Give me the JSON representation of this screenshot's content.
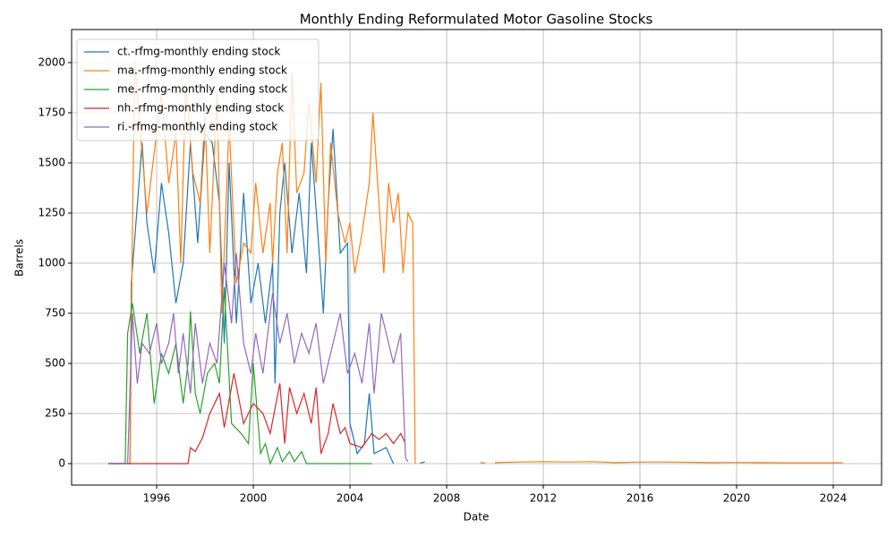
{
  "chart_data": {
    "type": "line",
    "title": "Monthly Ending Reformulated Motor Gasoline Stocks",
    "x_label": "Date",
    "y_label": "Barrels",
    "xlim": [
      1992.48,
      2026.0
    ],
    "xticks": [
      1996,
      2000,
      2004,
      2008,
      2012,
      2016,
      2020,
      2024
    ],
    "ylim": [
      -107,
      2165
    ],
    "yticks": [
      0,
      250,
      500,
      750,
      1000,
      1250,
      1500,
      1750,
      2000
    ],
    "grid": true,
    "legend": "upper left",
    "series": [
      {
        "name": "ct.-rfmg-monthly ending stock",
        "color": "#1f77b4",
        "x": [
          1994.0,
          1994.9,
          1994.95,
          1995.4,
          1995.6,
          1995.9,
          1996.2,
          1996.5,
          1996.8,
          1997.1,
          1997.4,
          1997.7,
          1998.0,
          1998.3,
          1998.6,
          1998.8,
          1999.0,
          1999.3,
          1999.6,
          1999.9,
          2000.2,
          2000.5,
          2000.8,
          2000.9,
          2001.1,
          2001.3,
          2001.6,
          2001.9,
          2002.2,
          2002.4,
          2002.7,
          2002.9,
          2003.1,
          2003.3,
          2003.6,
          2003.9,
          2004.0,
          2004.3,
          2004.6,
          2004.8,
          2005.0,
          2005.5,
          2005.8,
          2006.4,
          2006.9,
          2007.1
        ],
        "values": [
          0,
          0,
          900,
          1600,
          1200,
          950,
          1400,
          1150,
          800,
          1000,
          1600,
          1100,
          1650,
          1600,
          1300,
          600,
          1500,
          700,
          1350,
          800,
          1000,
          700,
          1000,
          400,
          1250,
          1500,
          1050,
          1350,
          950,
          1600,
          1100,
          750,
          1300,
          1670,
          1050,
          1100,
          200,
          50,
          100,
          350,
          50,
          80,
          0,
          null,
          3,
          8
        ]
      },
      {
        "name": "ma.-rfmg-monthly ending stock",
        "color": "#ff7f0e",
        "x": [
          1994.0,
          1994.9,
          1995.0,
          1995.1,
          1995.3,
          1995.6,
          1995.9,
          1996.2,
          1996.5,
          1996.8,
          1997.0,
          1997.2,
          1997.5,
          1997.8,
          1998.0,
          1998.2,
          1998.5,
          1998.7,
          1999.0,
          1999.3,
          1999.6,
          1999.9,
          2000.1,
          2000.4,
          2000.7,
          2000.8,
          2001.0,
          2001.2,
          2001.4,
          2001.6,
          2001.8,
          2002.1,
          2002.3,
          2002.6,
          2002.8,
          2003.0,
          2003.2,
          2003.5,
          2003.8,
          2004.0,
          2004.2,
          2004.5,
          2004.8,
          2004.95,
          2005.2,
          2005.4,
          2005.6,
          2005.8,
          2006.0,
          2006.2,
          2006.4,
          2006.6,
          2006.7,
          2008.0,
          2009.4,
          2009.6,
          2009.8,
          2010.0,
          2011.0,
          2012.0,
          2013.0,
          2014.0,
          2015.0,
          2016.0,
          2017.0,
          2018.0,
          2019.0,
          2020.0,
          2021.0,
          2022.0,
          2023.0,
          2024.4
        ],
        "values": [
          0,
          0,
          1200,
          2000,
          1700,
          1250,
          1550,
          1850,
          1400,
          1650,
          1000,
          1900,
          1450,
          1300,
          1750,
          1050,
          1850,
          750,
          1700,
          900,
          1100,
          1050,
          1400,
          1050,
          1300,
          1000,
          1450,
          1600,
          1050,
          1950,
          1350,
          1450,
          1800,
          1400,
          1900,
          1000,
          1600,
          1250,
          1100,
          1200,
          950,
          1150,
          1400,
          1750,
          1300,
          950,
          1400,
          1200,
          1350,
          950,
          1250,
          1200,
          0,
          null,
          5,
          3,
          null,
          5,
          8,
          10,
          8,
          10,
          5,
          8,
          8,
          7,
          5,
          6,
          5,
          4,
          4,
          4
        ]
      },
      {
        "name": "me.-rfmg-monthly ending stock",
        "color": "#2ca02c",
        "x": [
          1994.0,
          1994.7,
          1994.8,
          1995.0,
          1995.3,
          1995.6,
          1995.9,
          1996.2,
          1996.5,
          1996.8,
          1997.1,
          1997.3,
          1997.4,
          1997.6,
          1997.8,
          1998.1,
          1998.4,
          1998.6,
          1998.8,
          1999.1,
          1999.5,
          1999.8,
          2000.0,
          2000.3,
          2000.5,
          2000.7,
          2001.0,
          2001.2,
          2001.5,
          2001.7,
          2002.0,
          2002.2,
          2004.9
        ],
        "values": [
          0,
          0,
          650,
          800,
          550,
          750,
          300,
          550,
          450,
          600,
          300,
          500,
          760,
          350,
          250,
          450,
          500,
          400,
          880,
          200,
          150,
          100,
          500,
          50,
          100,
          0,
          80,
          10,
          60,
          10,
          60,
          0,
          0
        ]
      },
      {
        "name": "nh.-rfmg-monthly ending stock",
        "color": "#d62728",
        "x": [
          1994.0,
          1997.3,
          1997.4,
          1997.6,
          1997.9,
          1998.2,
          1998.6,
          1998.8,
          1999.2,
          1999.6,
          2000.0,
          2000.4,
          2000.7,
          2001.1,
          2001.3,
          2001.5,
          2001.8,
          2002.1,
          2002.4,
          2002.6,
          2002.8,
          2003.1,
          2003.3,
          2003.6,
          2003.8,
          2004.0,
          2004.5,
          2004.9,
          2005.2,
          2005.5,
          2005.8,
          2006.1,
          2006.3
        ],
        "values": [
          0,
          0,
          80,
          60,
          130,
          250,
          350,
          180,
          450,
          200,
          300,
          250,
          150,
          400,
          100,
          380,
          250,
          350,
          200,
          380,
          50,
          150,
          300,
          150,
          180,
          100,
          80,
          150,
          120,
          150,
          100,
          150,
          100
        ]
      },
      {
        "name": "ri.-rfmg-monthly ending stock",
        "color": "#9467bd",
        "x": [
          1994.0,
          1994.8,
          1995.0,
          1995.2,
          1995.4,
          1995.7,
          1996.0,
          1996.2,
          1996.5,
          1996.7,
          1996.9,
          1997.1,
          1997.4,
          1997.6,
          1997.9,
          1998.2,
          1998.5,
          1998.8,
          1999.1,
          1999.3,
          1999.6,
          1999.9,
          2000.1,
          2000.4,
          2000.8,
          2001.1,
          2001.4,
          2001.7,
          2002.0,
          2002.3,
          2002.6,
          2002.9,
          2003.2,
          2003.6,
          2003.9,
          2004.2,
          2004.5,
          2004.8,
          2005.0,
          2005.3,
          2005.6,
          2005.8,
          2006.1,
          2006.3,
          2006.4
        ],
        "values": [
          0,
          0,
          750,
          400,
          600,
          550,
          700,
          500,
          600,
          750,
          450,
          650,
          350,
          700,
          400,
          600,
          500,
          1000,
          700,
          1050,
          600,
          450,
          650,
          450,
          850,
          600,
          750,
          500,
          650,
          550,
          700,
          400,
          550,
          750,
          450,
          550,
          400,
          700,
          350,
          750,
          600,
          500,
          650,
          30,
          10
        ]
      }
    ]
  }
}
